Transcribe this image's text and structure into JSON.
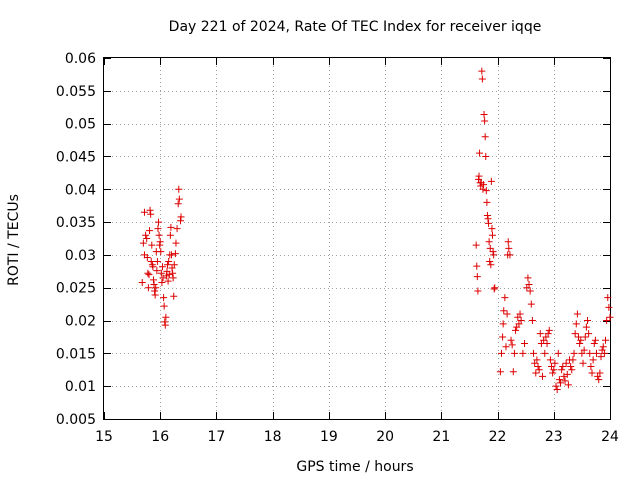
{
  "chart_data": {
    "type": "scatter",
    "title": "Day 221 of 2024, Rate Of TEC Index for receiver iqqe",
    "xlabel": "GPS time / hours",
    "ylabel": "ROTI / TECUs",
    "xlim": [
      15,
      24
    ],
    "ylim": [
      0.005,
      0.06
    ],
    "xticks": [
      15,
      16,
      17,
      18,
      19,
      20,
      21,
      22,
      23,
      24
    ],
    "xtick_labels": [
      "15",
      "16",
      "17",
      "18",
      "19",
      "20",
      "21",
      "22",
      "23",
      "24"
    ],
    "yticks": [
      0.005,
      0.01,
      0.015,
      0.02,
      0.025,
      0.03,
      0.035,
      0.04,
      0.045,
      0.05,
      0.055,
      0.06
    ],
    "ytick_labels": [
      "0.005",
      "0.01",
      "0.015",
      "0.02",
      "0.025",
      "0.03",
      "0.035",
      "0.04",
      "0.045",
      "0.05",
      "0.055",
      "0.06"
    ],
    "grid": true,
    "marker": "+",
    "color": "#dd0000",
    "series": [
      {
        "name": "ROTI",
        "points": [
          [
            15.68,
            0.0258
          ],
          [
            15.7,
            0.0318
          ],
          [
            15.72,
            0.0365
          ],
          [
            15.72,
            0.03
          ],
          [
            15.74,
            0.033
          ],
          [
            15.76,
            0.0325
          ],
          [
            15.77,
            0.0296
          ],
          [
            15.78,
            0.0272
          ],
          [
            15.79,
            0.025
          ],
          [
            15.8,
            0.027
          ],
          [
            15.81,
            0.0337
          ],
          [
            15.82,
            0.0368
          ],
          [
            15.83,
            0.0362
          ],
          [
            15.84,
            0.029
          ],
          [
            15.85,
            0.0315
          ],
          [
            15.86,
            0.0285
          ],
          [
            15.87,
            0.0282
          ],
          [
            15.88,
            0.0262
          ],
          [
            15.89,
            0.0255
          ],
          [
            15.9,
            0.0245
          ],
          [
            15.91,
            0.0239
          ],
          [
            15.92,
            0.025
          ],
          [
            15.93,
            0.0305
          ],
          [
            15.94,
            0.0276
          ],
          [
            15.95,
            0.029
          ],
          [
            15.96,
            0.034
          ],
          [
            15.97,
            0.035
          ],
          [
            15.98,
            0.033
          ],
          [
            15.99,
            0.0315
          ],
          [
            16.0,
            0.032
          ],
          [
            16.01,
            0.0305
          ],
          [
            16.02,
            0.0272
          ],
          [
            16.03,
            0.0258
          ],
          [
            16.04,
            0.0282
          ],
          [
            16.05,
            0.0265
          ],
          [
            16.06,
            0.0235
          ],
          [
            16.07,
            0.0222
          ],
          [
            16.08,
            0.0198
          ],
          [
            16.09,
            0.0193
          ],
          [
            16.1,
            0.0205
          ],
          [
            16.11,
            0.0268
          ],
          [
            16.12,
            0.0275
          ],
          [
            16.13,
            0.0285
          ],
          [
            16.14,
            0.026
          ],
          [
            16.15,
            0.029
          ],
          [
            16.16,
            0.027
          ],
          [
            16.17,
            0.03
          ],
          [
            16.18,
            0.033
          ],
          [
            16.19,
            0.0342
          ],
          [
            16.2,
            0.03
          ],
          [
            16.21,
            0.028
          ],
          [
            16.22,
            0.0272
          ],
          [
            16.23,
            0.0265
          ],
          [
            16.24,
            0.0237
          ],
          [
            16.25,
            0.0285
          ],
          [
            16.27,
            0.0302
          ],
          [
            16.28,
            0.0318
          ],
          [
            16.3,
            0.034
          ],
          [
            16.32,
            0.0378
          ],
          [
            16.33,
            0.04
          ],
          [
            16.34,
            0.0385
          ],
          [
            16.36,
            0.0352
          ],
          [
            16.37,
            0.0358
          ],
          [
            21.62,
            0.0315
          ],
          [
            21.63,
            0.0283
          ],
          [
            21.64,
            0.0267
          ],
          [
            21.65,
            0.0245
          ],
          [
            21.66,
            0.0415
          ],
          [
            21.67,
            0.042
          ],
          [
            21.68,
            0.0455
          ],
          [
            21.69,
            0.041
          ],
          [
            21.7,
            0.0405
          ],
          [
            21.71,
            0.041
          ],
          [
            21.72,
            0.058
          ],
          [
            21.73,
            0.0568
          ],
          [
            21.74,
            0.04
          ],
          [
            21.75,
            0.0407
          ],
          [
            21.76,
            0.0514
          ],
          [
            21.77,
            0.0504
          ],
          [
            21.78,
            0.048
          ],
          [
            21.79,
            0.045
          ],
          [
            21.8,
            0.0398
          ],
          [
            21.81,
            0.038
          ],
          [
            21.82,
            0.036
          ],
          [
            21.83,
            0.0355
          ],
          [
            21.84,
            0.0348
          ],
          [
            21.85,
            0.032
          ],
          [
            21.86,
            0.029
          ],
          [
            21.87,
            0.031
          ],
          [
            21.88,
            0.0285
          ],
          [
            21.89,
            0.0412
          ],
          [
            21.9,
            0.034
          ],
          [
            21.91,
            0.033
          ],
          [
            21.92,
            0.0305
          ],
          [
            21.93,
            0.03
          ],
          [
            21.94,
            0.0248
          ],
          [
            21.95,
            0.025
          ],
          [
            22.05,
            0.0122
          ],
          [
            22.07,
            0.015
          ],
          [
            22.09,
            0.0175
          ],
          [
            22.1,
            0.0195
          ],
          [
            22.11,
            0.0215
          ],
          [
            22.13,
            0.0235
          ],
          [
            22.15,
            0.016
          ],
          [
            22.17,
            0.021
          ],
          [
            22.18,
            0.03
          ],
          [
            22.19,
            0.032
          ],
          [
            22.2,
            0.031
          ],
          [
            22.22,
            0.03
          ],
          [
            22.24,
            0.017
          ],
          [
            22.26,
            0.0163
          ],
          [
            22.28,
            0.0122
          ],
          [
            22.3,
            0.015
          ],
          [
            22.32,
            0.0185
          ],
          [
            22.34,
            0.019
          ],
          [
            22.36,
            0.0205
          ],
          [
            22.38,
            0.0195
          ],
          [
            22.4,
            0.021
          ],
          [
            22.42,
            0.02
          ],
          [
            22.45,
            0.015
          ],
          [
            22.48,
            0.0165
          ],
          [
            22.52,
            0.025
          ],
          [
            22.54,
            0.0265
          ],
          [
            22.56,
            0.0255
          ],
          [
            22.58,
            0.0245
          ],
          [
            22.6,
            0.0225
          ],
          [
            22.62,
            0.02
          ],
          [
            22.64,
            0.015
          ],
          [
            22.66,
            0.0135
          ],
          [
            22.68,
            0.012
          ],
          [
            22.7,
            0.014
          ],
          [
            22.72,
            0.013
          ],
          [
            22.74,
            0.0125
          ],
          [
            22.76,
            0.018
          ],
          [
            22.78,
            0.0165
          ],
          [
            22.8,
            0.0115
          ],
          [
            22.82,
            0.017
          ],
          [
            22.84,
            0.015
          ],
          [
            22.86,
            0.0175
          ],
          [
            22.88,
            0.0165
          ],
          [
            22.9,
            0.018
          ],
          [
            22.92,
            0.0185
          ],
          [
            22.94,
            0.014
          ],
          [
            22.96,
            0.013
          ],
          [
            22.98,
            0.012
          ],
          [
            23.0,
            0.0125
          ],
          [
            23.02,
            0.0135
          ],
          [
            23.04,
            0.01
          ],
          [
            23.06,
            0.0095
          ],
          [
            23.08,
            0.015
          ],
          [
            23.1,
            0.011
          ],
          [
            23.12,
            0.0105
          ],
          [
            23.14,
            0.0125
          ],
          [
            23.16,
            0.013
          ],
          [
            23.18,
            0.0115
          ],
          [
            23.2,
            0.0108
          ],
          [
            23.22,
            0.0135
          ],
          [
            23.24,
            0.0118
          ],
          [
            23.26,
            0.0102
          ],
          [
            23.28,
            0.014
          ],
          [
            23.3,
            0.013
          ],
          [
            23.32,
            0.0125
          ],
          [
            23.34,
            0.014
          ],
          [
            23.36,
            0.015
          ],
          [
            23.38,
            0.018
          ],
          [
            23.4,
            0.0195
          ],
          [
            23.42,
            0.021
          ],
          [
            23.44,
            0.0175
          ],
          [
            23.46,
            0.0165
          ],
          [
            23.48,
            0.017
          ],
          [
            23.5,
            0.015
          ],
          [
            23.52,
            0.0135
          ],
          [
            23.54,
            0.0155
          ],
          [
            23.56,
            0.0175
          ],
          [
            23.58,
            0.019
          ],
          [
            23.6,
            0.02
          ],
          [
            23.62,
            0.018
          ],
          [
            23.64,
            0.015
          ],
          [
            23.66,
            0.013
          ],
          [
            23.68,
            0.012
          ],
          [
            23.7,
            0.014
          ],
          [
            23.72,
            0.0165
          ],
          [
            23.74,
            0.017
          ],
          [
            23.76,
            0.015
          ],
          [
            23.78,
            0.0115
          ],
          [
            23.8,
            0.011
          ],
          [
            23.82,
            0.012
          ],
          [
            23.84,
            0.0145
          ],
          [
            23.86,
            0.0155
          ],
          [
            23.88,
            0.016
          ],
          [
            23.9,
            0.015
          ],
          [
            23.92,
            0.017
          ],
          [
            23.94,
            0.02
          ],
          [
            23.96,
            0.0235
          ],
          [
            23.98,
            0.022
          ],
          [
            24.0,
            0.0205
          ]
        ]
      }
    ]
  }
}
